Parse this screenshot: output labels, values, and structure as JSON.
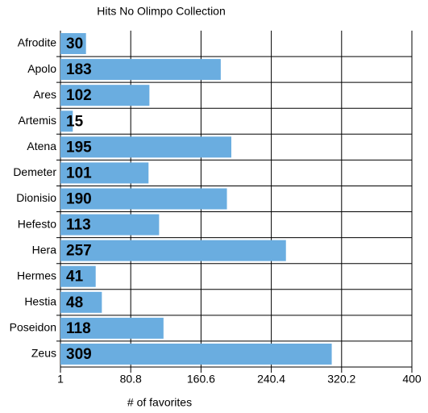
{
  "chart_data": {
    "type": "barh",
    "title": "Hits No Olimpo Collection",
    "xlabel": "# of favorites",
    "categories": [
      "Afrodite",
      "Apolo",
      "Ares",
      "Artemis",
      "Atena",
      "Demeter",
      "Dionisio",
      "Hefesto",
      "Hera",
      "Hermes",
      "Hestia",
      "Poseidon",
      "Zeus"
    ],
    "values": [
      30,
      183,
      102,
      15,
      195,
      101,
      190,
      113,
      257,
      41,
      48,
      118,
      309
    ],
    "color": "#6aade0",
    "xlim": [
      1,
      400
    ],
    "xticks": [
      1,
      80.8,
      160.6,
      240.4,
      320.2,
      400
    ],
    "grid": true
  }
}
